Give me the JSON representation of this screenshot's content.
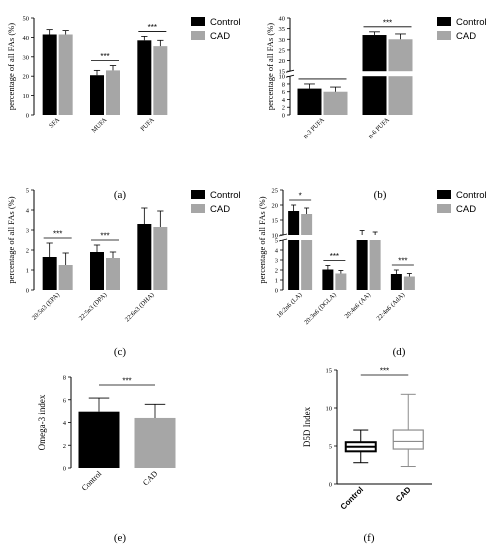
{
  "colors": {
    "control": "#000000",
    "cad": "#a6a6a6"
  },
  "chart_data": [
    {
      "id": "a",
      "type": "bar",
      "panel_label": "(a)",
      "ylabel": "percentage of all FAs (%)",
      "ylim": [
        0,
        50
      ],
      "yticks": [
        0,
        10,
        20,
        30,
        40,
        50
      ],
      "categories": [
        "SFA",
        "MUFA",
        "PUFA"
      ],
      "series": [
        {
          "name": "Control",
          "values": [
            41.5,
            20.5,
            38.5
          ],
          "errors": [
            2.5,
            2.5,
            2
          ]
        },
        {
          "name": "CAD",
          "values": [
            41.5,
            23,
            35.5
          ],
          "errors": [
            2,
            2.5,
            3
          ]
        }
      ],
      "significance": [
        "",
        "***",
        "***"
      ],
      "legend": "top-right"
    },
    {
      "id": "b",
      "type": "bar",
      "panel_label": "(b)",
      "ylabel": "percentage of all FAs (%)",
      "ylim": [
        0,
        40
      ],
      "yticks": [
        0,
        2,
        4,
        6,
        8,
        10,
        15,
        20,
        25,
        30,
        35,
        40
      ],
      "axis_break": [
        10,
        15
      ],
      "categories": [
        "n-3 PUFA",
        "n-6 PUFA"
      ],
      "series": [
        {
          "name": "Control",
          "values": [
            6.8,
            32
          ],
          "errors": [
            1.2,
            1.5
          ]
        },
        {
          "name": "CAD",
          "values": [
            6,
            30
          ],
          "errors": [
            1.2,
            2.5
          ]
        }
      ],
      "significance": [
        "***",
        "***"
      ],
      "legend": "top-right"
    },
    {
      "id": "c",
      "type": "bar",
      "panel_label": "(c)",
      "ylabel": "percentage of all FAs (%)",
      "ylim": [
        0,
        5
      ],
      "yticks": [
        0,
        1,
        2,
        3,
        4,
        5
      ],
      "categories": [
        "20:5n3 (EPA)",
        "22:5n3 (DPA)",
        "22:6n3 (DHA)"
      ],
      "series": [
        {
          "name": "Control",
          "values": [
            1.65,
            1.9,
            3.3
          ],
          "errors": [
            0.7,
            0.35,
            0.8
          ]
        },
        {
          "name": "CAD",
          "values": [
            1.25,
            1.6,
            3.15
          ],
          "errors": [
            0.6,
            0.3,
            0.8
          ]
        }
      ],
      "significance": [
        "***",
        "***",
        ""
      ],
      "legend": "top-right"
    },
    {
      "id": "d",
      "type": "bar",
      "panel_label": "(d)",
      "ylabel": "percentage of all FAs (%)",
      "ylim": [
        0,
        25
      ],
      "yticks": [
        0,
        1,
        2,
        3,
        4,
        5,
        10,
        15,
        20,
        25
      ],
      "axis_break": [
        5,
        10
      ],
      "categories": [
        "18:2n6 (LA)",
        "20:3n6 (DGLA)",
        "20:4n6 (AA)",
        "22:4n6 (AdA)"
      ],
      "series": [
        {
          "name": "Control",
          "values": [
            18,
            2.05,
            10,
            1.6
          ],
          "errors": [
            2,
            0.4,
            1.5,
            0.4
          ]
        },
        {
          "name": "CAD",
          "values": [
            17,
            1.65,
            9.5,
            1.35
          ],
          "errors": [
            2,
            0.3,
            1.5,
            0.3
          ]
        }
      ],
      "significance": [
        "*",
        "***",
        "",
        "***"
      ],
      "legend": "top-right"
    },
    {
      "id": "e",
      "type": "bar",
      "panel_label": "(e)",
      "ylabel": "Omega-3 index",
      "ylim": [
        0,
        8
      ],
      "yticks": [
        0,
        2,
        4,
        6,
        8
      ],
      "categories": [
        "Control",
        "CAD"
      ],
      "values": [
        4.95,
        4.4
      ],
      "errors": [
        1.2,
        1.2
      ],
      "significance": "***"
    },
    {
      "id": "f",
      "type": "box",
      "panel_label": "(f)",
      "ylabel": "D5D Index",
      "ylim": [
        0,
        15
      ],
      "yticks": [
        0,
        5,
        10,
        15
      ],
      "categories": [
        "Control",
        "CAD"
      ],
      "boxes": [
        {
          "min": 2.8,
          "q1": 4.3,
          "median": 4.9,
          "q3": 5.5,
          "max": 7.1
        },
        {
          "min": 2.3,
          "q1": 4.6,
          "median": 5.6,
          "q3": 7.1,
          "max": 11.8
        }
      ],
      "significance": "***"
    }
  ]
}
